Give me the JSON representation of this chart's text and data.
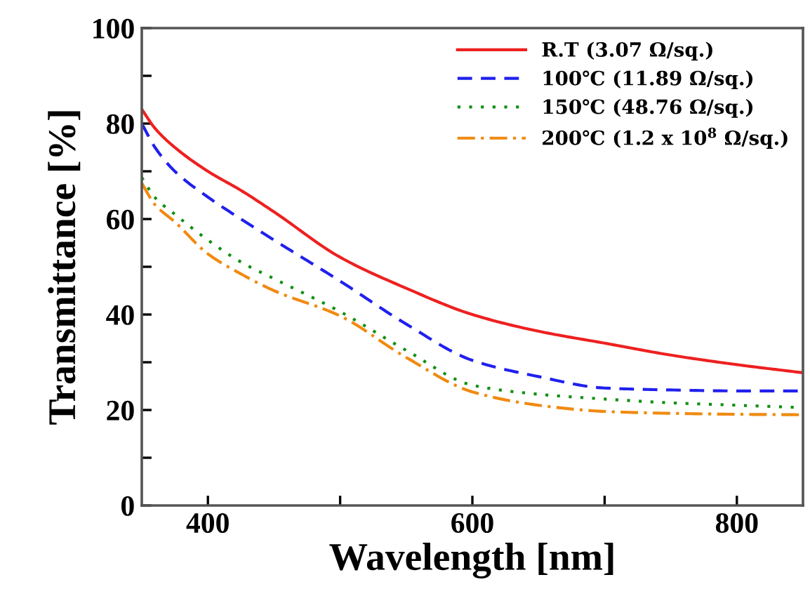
{
  "chart_data": {
    "type": "line",
    "xlabel": "Wavelength [nm]",
    "ylabel": "Transmittance [%]",
    "xlim": [
      350,
      850
    ],
    "ylim": [
      0,
      100
    ],
    "xticks": [
      400,
      {
        "value": 500,
        "label": null
      },
      600,
      {
        "value": 700,
        "label": null
      },
      800
    ],
    "yticks": [
      0,
      {
        "value": 10,
        "label": null
      },
      20,
      {
        "value": 30,
        "label": null
      },
      40,
      {
        "value": 50,
        "label": null
      },
      60,
      {
        "value": 70,
        "label": null
      },
      80,
      {
        "value": 90,
        "label": null
      },
      100
    ],
    "x": [
      350,
      360,
      375,
      400,
      425,
      450,
      500,
      550,
      600,
      650,
      700,
      750,
      800,
      850
    ],
    "grid": false,
    "legend": "top right",
    "marker": "none",
    "series": [
      {
        "name": "R.T (3.07 Ω/sq.)",
        "color": "#ee2020",
        "line_style": "solid",
        "values": [
          83,
          79,
          75,
          70,
          66,
          61.5,
          52,
          45.5,
          40,
          36.5,
          34,
          31.5,
          29.5,
          27.8
        ]
      },
      {
        "name": "100℃ (11.89 Ω/sq.)",
        "color": "#2020ee",
        "line_style": "dashed",
        "values": [
          80,
          75,
          70,
          64.6,
          60,
          55.6,
          47,
          38,
          30.4,
          27,
          24.6,
          24.2,
          24,
          24
        ]
      },
      {
        "name": "150℃ (48.76 Ω/sq.)",
        "color": "#109010",
        "line_style": "dotted",
        "values": [
          68.7,
          64.5,
          61,
          55.6,
          51,
          47.5,
          40.6,
          32.5,
          25.2,
          23.3,
          22.3,
          21.5,
          21,
          20.5
        ]
      },
      {
        "name": "200℃ (1.2 x 10$^{8}$ Ω/sq.)",
        "color": "#f08a10",
        "line_style": "dashdot",
        "values": [
          67.5,
          63,
          59.4,
          52.7,
          48.5,
          45,
          39.7,
          31,
          23.8,
          21,
          19.7,
          19.3,
          19.1,
          19
        ]
      }
    ]
  }
}
